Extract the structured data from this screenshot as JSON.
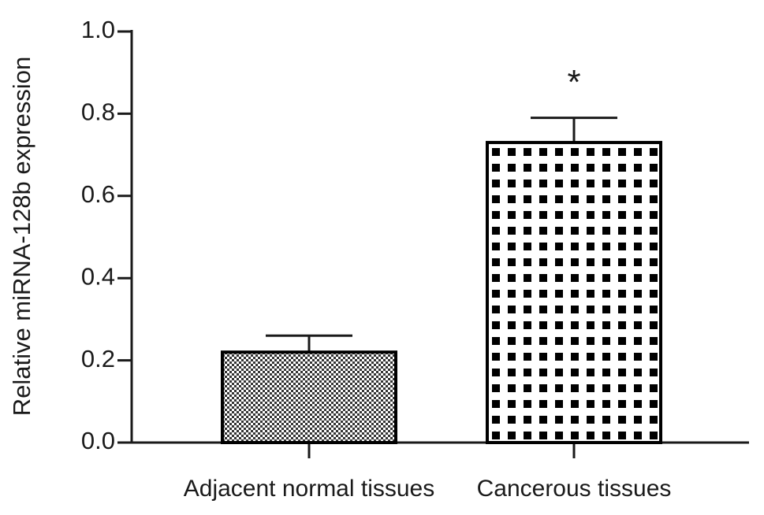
{
  "chart_data": {
    "type": "bar",
    "y_label": "Relative miRNA-128b expression",
    "categories": [
      "Adjacent normal tissues",
      "Cancerous tissues"
    ],
    "values": [
      0.22,
      0.73
    ],
    "errors": [
      0.04,
      0.06
    ],
    "ylim": [
      0,
      1.0
    ],
    "yticks": [
      {
        "value": 0,
        "label": "0.0"
      },
      0.2,
      0.4,
      0.6,
      0.8,
      {
        "value": 1.0,
        "label": "1.0"
      }
    ],
    "annotations": [
      {
        "category": "Cancerous tissues",
        "text": "*"
      }
    ]
  }
}
